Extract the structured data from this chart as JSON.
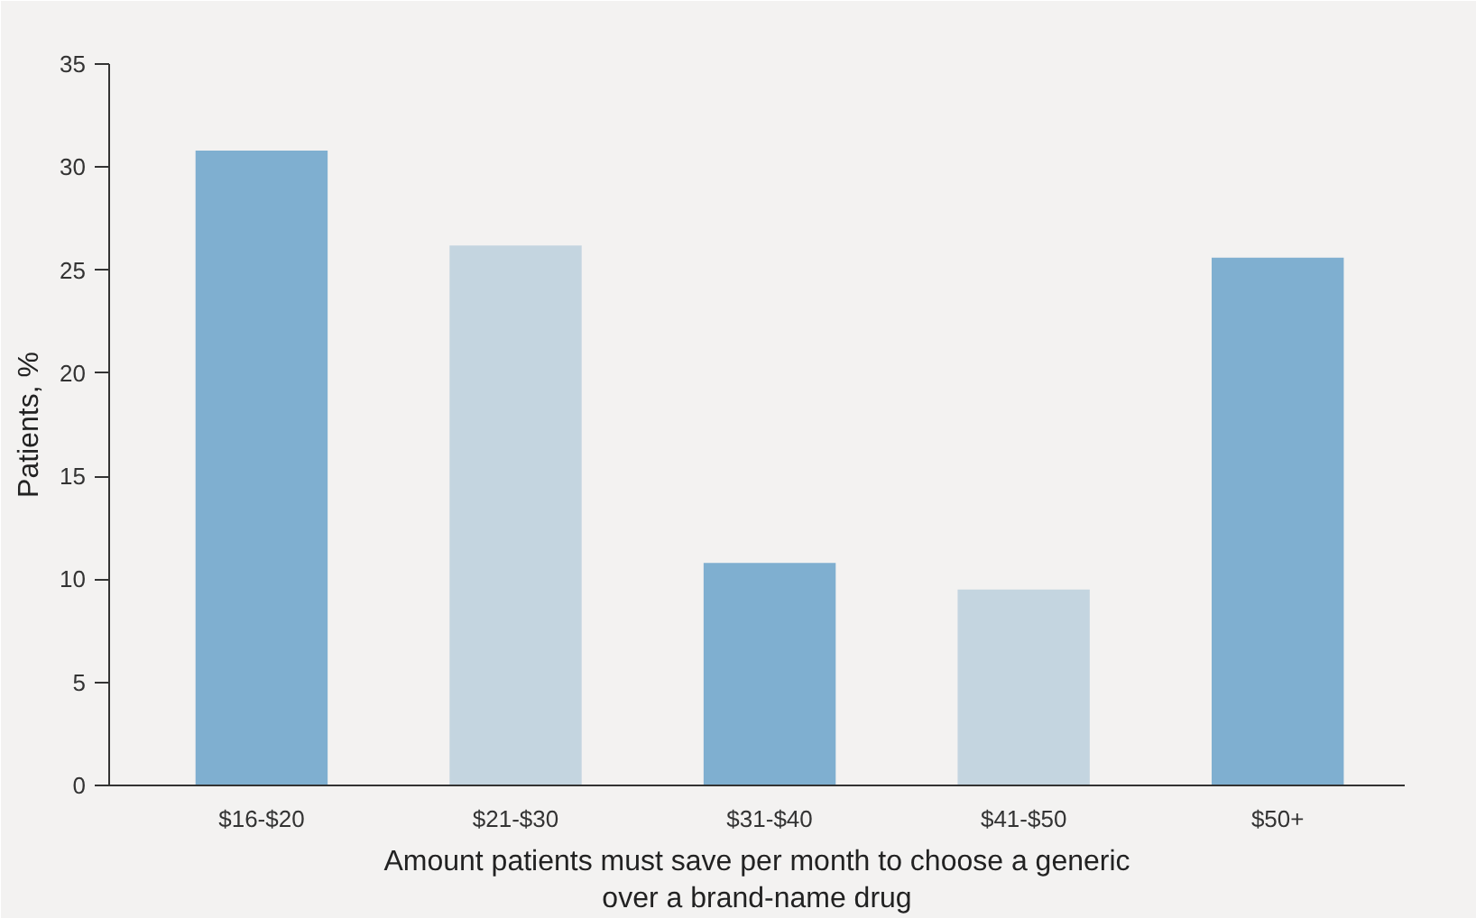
{
  "chart_data": {
    "type": "bar",
    "xlabel": "Amount patients must save per month to choose a generic\nover a brand-name drug",
    "ylabel": "Patients, %",
    "categories": [
      "$16-$20",
      "$21-$30",
      "$31-$40",
      "$41-$50",
      "$50+"
    ],
    "values": [
      30.8,
      26.2,
      10.8,
      9.5,
      25.6
    ],
    "colors": [
      "#7fafd0",
      "#c4d5e0",
      "#7fafd0",
      "#c4d5e0",
      "#7fafd0"
    ],
    "ylim": [
      0,
      35
    ],
    "yticks": [
      0,
      5,
      10,
      15,
      20,
      25,
      30,
      35
    ],
    "grid": false
  }
}
